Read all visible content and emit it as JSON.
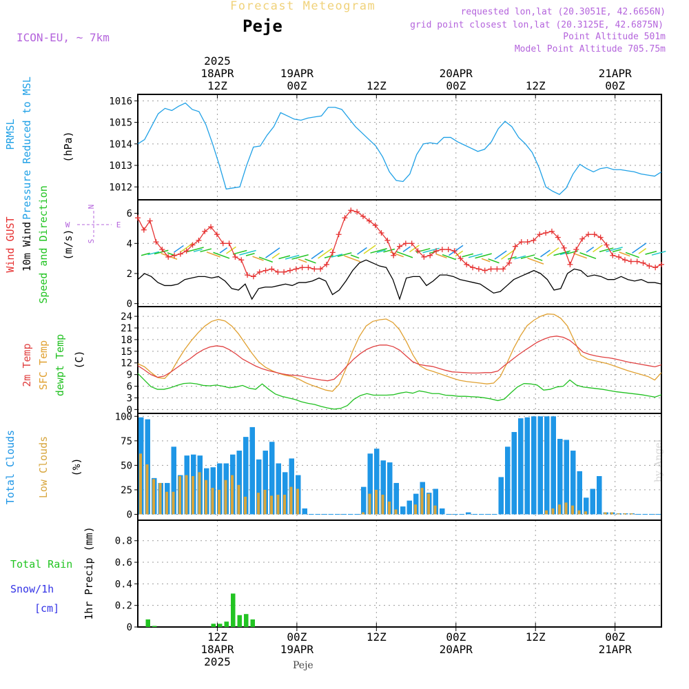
{
  "header": {
    "app_title": "Forecast Meteogram",
    "location": "Peje",
    "model": "ICON-EU, ~ 7km",
    "requested": "requested lon,lat (20.3051E, 42.6656N)",
    "gridpoint": "grid point closest lon,lat (20.3125E, 42.6875N)",
    "point_alt": "Point Altitude 501m",
    "model_alt": "Model Point Altitude 705.75m",
    "footer": "Peje",
    "credit": "by Angel"
  },
  "colors": {
    "pressure": "#1ea0e6",
    "gust": "#e63232",
    "wind": "#000000",
    "dir": "#22c422",
    "temp2m": "#e04040",
    "sfc": "#e0a030",
    "dewpt": "#20c020",
    "total_clouds": "#1e96e6",
    "low_clouds": "#d7a53c",
    "rain": "#22c422",
    "snow": "#3232e6",
    "accent": "#b464dc"
  },
  "time_axis": {
    "top_labels": [
      {
        "t": 12,
        "lines": [
          "2025",
          "18APR",
          "12Z"
        ]
      },
      {
        "t": 24,
        "lines": [
          "19APR",
          "00Z"
        ]
      },
      {
        "t": 36,
        "lines": [
          "12Z"
        ]
      },
      {
        "t": 48,
        "lines": [
          "20APR",
          "00Z"
        ]
      },
      {
        "t": 60,
        "lines": [
          "12Z"
        ]
      },
      {
        "t": 72,
        "lines": [
          "21APR",
          "00Z"
        ]
      }
    ],
    "bottom_labels": [
      {
        "t": 12,
        "lines": [
          "12Z",
          "18APR",
          "2025"
        ]
      },
      {
        "t": 24,
        "lines": [
          "00Z",
          "19APR"
        ]
      },
      {
        "t": 36,
        "lines": [
          "12Z"
        ]
      },
      {
        "t": 48,
        "lines": [
          "00Z",
          "20APR"
        ]
      },
      {
        "t": 60,
        "lines": [
          "12Z"
        ]
      },
      {
        "t": 72,
        "lines": [
          "00Z",
          "21APR"
        ]
      }
    ],
    "grid_t": [
      12,
      24,
      36,
      48,
      60,
      72
    ]
  },
  "chart_data": [
    {
      "type": "line",
      "panel": "pressure",
      "left_labels": [
        {
          "text": "PRMSL",
          "color": "#1ea0e6"
        },
        {
          "text": "Pressure Reduced to MSL",
          "color": "#1ea0e6"
        },
        {
          "text": "(hPa)",
          "color": "#000000"
        }
      ],
      "yticks": [
        1012,
        1013,
        1014,
        1015,
        1016
      ],
      "ylim": [
        1011.4,
        1016.3
      ],
      "series": [
        {
          "values": [
            1014.0,
            1014.2,
            1014.8,
            1015.4,
            1015.65,
            1015.55,
            1015.75,
            1015.9,
            1015.6,
            1015.5,
            1014.9,
            1014.0,
            1013.0,
            1011.9,
            1011.95,
            1012.0,
            1013.0,
            1013.85,
            1013.9,
            1014.4,
            1014.8,
            1015.45,
            1015.3,
            1015.15,
            1015.1,
            1015.2,
            1015.25,
            1015.3,
            1015.7,
            1015.7,
            1015.6,
            1015.2,
            1014.8,
            1014.5,
            1014.2,
            1013.9,
            1013.4,
            1012.7,
            1012.3,
            1012.25,
            1012.6,
            1013.5,
            1014.0,
            1014.05,
            1014.0,
            1014.3,
            1014.3,
            1014.1,
            1013.95,
            1013.8,
            1013.65,
            1013.75,
            1014.1,
            1014.7,
            1015.05,
            1014.8,
            1014.3,
            1014.0,
            1013.6,
            1012.9,
            1012.0,
            1011.8,
            1011.65,
            1011.95,
            1012.6,
            1013.05,
            1012.85,
            1012.7,
            1012.85,
            1012.9,
            1012.8,
            1012.8,
            1012.75,
            1012.7,
            1012.6,
            1012.55,
            1012.5,
            1012.7
          ]
        }
      ]
    },
    {
      "type": "line",
      "panel": "wind",
      "left_labels": [
        {
          "text": "Wind GUST",
          "color": "#e63232"
        },
        {
          "text": "10m Wind",
          "color": "#000000"
        },
        {
          "text": "Speed and Direction",
          "color": "#22c422"
        },
        {
          "text": "(m/s)",
          "color": "#000000"
        }
      ],
      "compass": {
        "n": "N",
        "s": "S",
        "w": "W",
        "e": "E",
        "color": "#b464dc"
      },
      "yticks": [
        0,
        2,
        4,
        6
      ],
      "ylim": [
        -0.2,
        6.9
      ],
      "series": [
        {
          "name": "Wind GUST",
          "values": [
            5.7,
            4.9,
            5.5,
            4.1,
            3.6,
            3.1,
            3.2,
            3.3,
            3.5,
            3.9,
            4.2,
            4.8,
            5.1,
            4.6,
            4.0,
            4.0,
            3.1,
            2.9,
            1.9,
            1.8,
            2.1,
            2.2,
            2.3,
            2.1,
            2.1,
            2.2,
            2.3,
            2.4,
            2.4,
            2.3,
            2.3,
            2.6,
            3.4,
            4.6,
            5.7,
            6.2,
            6.1,
            5.8,
            5.5,
            5.2,
            4.7,
            4.2,
            3.2,
            3.8,
            4.0,
            4.0,
            3.5,
            3.1,
            3.2,
            3.5,
            3.6,
            3.6,
            3.5,
            3.0,
            2.6,
            2.4,
            2.3,
            2.2,
            2.3,
            2.3,
            2.3,
            2.7,
            3.8,
            4.1,
            4.1,
            4.2,
            4.6,
            4.7,
            4.8,
            4.4,
            3.7,
            2.6,
            3.6,
            4.3,
            4.6,
            4.6,
            4.4,
            3.9,
            3.2,
            3.1,
            2.9,
            2.8,
            2.8,
            2.7,
            2.5,
            2.4,
            2.6
          ]
        },
        {
          "name": "10m Wind",
          "values": [
            1.6,
            2.0,
            1.8,
            1.4,
            1.2,
            1.2,
            1.3,
            1.6,
            1.7,
            1.8,
            1.8,
            1.7,
            1.8,
            1.5,
            1.0,
            0.9,
            1.3,
            0.3,
            1.0,
            1.1,
            1.1,
            1.2,
            1.3,
            1.2,
            1.4,
            1.4,
            1.5,
            1.7,
            1.5,
            0.6,
            0.9,
            1.5,
            2.2,
            2.7,
            2.9,
            2.7,
            2.5,
            2.4,
            1.6,
            0.3,
            1.7,
            1.8,
            1.8,
            1.2,
            1.5,
            1.9,
            1.9,
            1.8,
            1.6,
            1.5,
            1.4,
            1.3,
            1.0,
            0.7,
            0.8,
            1.2,
            1.6,
            1.8,
            2.0,
            2.2,
            2.0,
            1.6,
            0.9,
            1.0,
            2.0,
            2.3,
            2.2,
            1.8,
            1.9,
            1.8,
            1.6,
            1.6,
            1.8,
            1.6,
            1.5,
            1.6,
            1.4,
            1.4,
            1.3
          ]
        }
      ]
    },
    {
      "type": "line",
      "panel": "temperature",
      "left_labels": [
        {
          "text": "2m Temp",
          "color": "#e04040"
        },
        {
          "text": "SFC Temp",
          "color": "#e0a030"
        },
        {
          "text": "dewpt Temp",
          "color": "#20c020"
        },
        {
          "text": "(C)",
          "color": "#000000"
        }
      ],
      "yticks": [
        0,
        3,
        6,
        9,
        12,
        15,
        18,
        21,
        24
      ],
      "ylim": [
        -1,
        26.5
      ],
      "series": [
        {
          "name": "2m Temp",
          "values": [
            11.3,
            10.2,
            9.0,
            8.3,
            8.6,
            9.6,
            10.8,
            12.0,
            13.1,
            14.4,
            15.4,
            16.1,
            16.4,
            16.2,
            15.4,
            14.3,
            13.0,
            12.1,
            11.2,
            10.5,
            10.0,
            9.6,
            9.2,
            8.9,
            8.8,
            8.6,
            8.2,
            7.9,
            7.6,
            7.4,
            7.8,
            9.4,
            11.3,
            13.0,
            14.4,
            15.5,
            16.2,
            16.6,
            16.6,
            16.2,
            15.3,
            13.8,
            12.3,
            11.6,
            11.3,
            11.1,
            10.6,
            10.1,
            9.7,
            9.6,
            9.5,
            9.4,
            9.4,
            9.5,
            9.5,
            9.9,
            11.3,
            12.6,
            13.9,
            15.1,
            16.2,
            17.3,
            18.1,
            18.7,
            18.9,
            18.6,
            17.8,
            16.4,
            14.8,
            14.2,
            13.8,
            13.5,
            13.3,
            13.0,
            12.6,
            12.2,
            11.9,
            11.6,
            11.3,
            11.0,
            11.5
          ]
        },
        {
          "name": "SFC Temp",
          "values": [
            11.8,
            11.0,
            9.5,
            8.2,
            8.0,
            9.8,
            12.8,
            15.5,
            17.8,
            19.8,
            21.5,
            22.7,
            23.2,
            22.8,
            21.5,
            19.5,
            17.0,
            14.5,
            12.3,
            10.9,
            10.0,
            9.3,
            8.8,
            8.5,
            7.8,
            6.9,
            6.2,
            5.6,
            5.0,
            4.7,
            6.5,
            10.5,
            15.0,
            18.8,
            21.5,
            22.7,
            23.1,
            23.3,
            22.4,
            20.5,
            17.5,
            14.0,
            11.3,
            10.3,
            9.8,
            9.2,
            8.6,
            8.0,
            7.5,
            7.2,
            7.0,
            6.8,
            6.6,
            6.8,
            8.5,
            12.0,
            15.8,
            19.0,
            21.6,
            23.0,
            24.0,
            24.6,
            24.5,
            23.5,
            21.5,
            17.8,
            14.0,
            13.0,
            12.6,
            12.2,
            11.8,
            11.2,
            10.6,
            10.0,
            9.5,
            9.0,
            8.5,
            7.6,
            9.5
          ]
        },
        {
          "name": "dewpt Temp",
          "values": [
            9.3,
            7.6,
            5.9,
            5.2,
            5.2,
            5.6,
            6.2,
            6.7,
            6.8,
            6.6,
            6.2,
            6.1,
            6.3,
            6.0,
            5.6,
            5.8,
            6.2,
            5.5,
            5.2,
            6.6,
            5.2,
            4.0,
            3.4,
            3.0,
            2.6,
            2.0,
            1.6,
            1.3,
            0.8,
            0.4,
            0.1,
            0.3,
            1.0,
            2.6,
            3.6,
            4.1,
            3.7,
            3.7,
            3.7,
            3.8,
            4.2,
            4.5,
            4.2,
            4.8,
            4.5,
            4.1,
            4.1,
            3.7,
            3.6,
            3.4,
            3.4,
            3.3,
            3.2,
            3.0,
            2.7,
            2.3,
            2.7,
            4.3,
            5.8,
            6.7,
            6.6,
            6.3,
            5.0,
            5.2,
            5.8,
            6.0,
            7.6,
            6.3,
            5.8,
            5.6,
            5.4,
            5.2,
            4.9,
            4.6,
            4.4,
            4.2,
            4.0,
            3.8,
            3.5,
            3.2,
            3.8
          ]
        }
      ]
    },
    {
      "type": "bar",
      "panel": "clouds",
      "left_labels": [
        {
          "text": "Total Clouds",
          "color": "#1e96e6"
        },
        {
          "text": "Low Clouds",
          "color": "#d7a53c"
        },
        {
          "text": "(%)",
          "color": "#000000"
        }
      ],
      "yticks": [
        0,
        25,
        50,
        75,
        100
      ],
      "ylim": [
        -6,
        103
      ],
      "series": [
        {
          "name": "Total Clouds",
          "values": [
            99,
            97,
            37,
            32,
            32,
            69,
            40,
            60,
            61,
            60,
            47,
            48,
            52,
            52,
            61,
            65,
            79,
            89,
            56,
            65,
            74,
            52,
            43,
            57,
            40,
            6,
            0,
            0,
            0,
            0,
            0,
            0,
            0,
            0,
            28,
            62,
            67,
            55,
            53,
            32,
            8,
            14,
            21,
            33,
            22,
            26,
            6,
            0,
            0,
            0,
            2,
            0,
            0,
            0,
            0,
            38,
            69,
            84,
            98,
            99,
            100,
            100,
            100,
            100,
            77,
            76,
            65,
            44,
            17,
            26,
            39,
            2,
            2,
            1,
            1,
            1,
            0,
            0,
            0,
            0
          ]
        },
        {
          "name": "Low Clouds",
          "values": [
            62,
            51,
            36,
            32,
            23,
            23,
            39,
            40,
            39,
            43,
            35,
            27,
            25,
            35,
            40,
            30,
            18,
            0,
            22,
            25,
            19,
            20,
            20,
            28,
            26,
            0,
            0,
            0,
            0,
            0,
            0,
            0,
            0,
            0,
            2,
            21,
            25,
            20,
            13,
            5,
            0,
            0,
            10,
            27,
            21,
            9,
            0,
            0,
            0,
            0,
            0,
            0,
            0,
            0,
            0,
            0,
            0,
            0,
            0,
            0,
            0,
            0,
            4,
            6,
            10,
            12,
            9,
            4,
            3,
            0,
            0,
            2,
            2,
            1,
            1,
            1,
            0,
            0,
            0,
            0
          ]
        }
      ]
    },
    {
      "type": "bar",
      "panel": "precip",
      "left_labels": [
        {
          "text": "Total  Rain",
          "color": "#22c422"
        },
        {
          "text": "Snow/1h",
          "color": "#3232e6"
        },
        {
          "text": "[cm]",
          "color": "#3232e6"
        },
        {
          "text": "1hr Precip (mm)",
          "color": "#000000"
        }
      ],
      "yticks": [
        0,
        0.2,
        0.4,
        0.6,
        0.8
      ],
      "ylim": [
        0,
        0.99
      ],
      "series": [
        {
          "name": "Total Rain",
          "values": [
            0.0,
            0.07,
            0.01,
            0,
            0,
            0,
            0,
            0,
            0,
            0,
            0,
            0.03,
            0.03,
            0.05,
            0.31,
            0.11,
            0.12,
            0.07,
            0,
            0,
            0,
            0,
            0,
            0,
            0,
            0,
            0,
            0,
            0,
            0,
            0,
            0,
            0,
            0,
            0,
            0,
            0,
            0,
            0,
            0,
            0,
            0,
            0,
            0,
            0,
            0,
            0,
            0,
            0,
            0,
            0,
            0,
            0,
            0,
            0,
            0,
            0,
            0,
            0,
            0,
            0,
            0,
            0,
            0,
            0,
            0,
            0,
            0,
            0,
            0,
            0,
            0,
            0,
            0,
            0,
            0,
            0,
            0,
            0,
            0
          ]
        }
      ]
    }
  ]
}
